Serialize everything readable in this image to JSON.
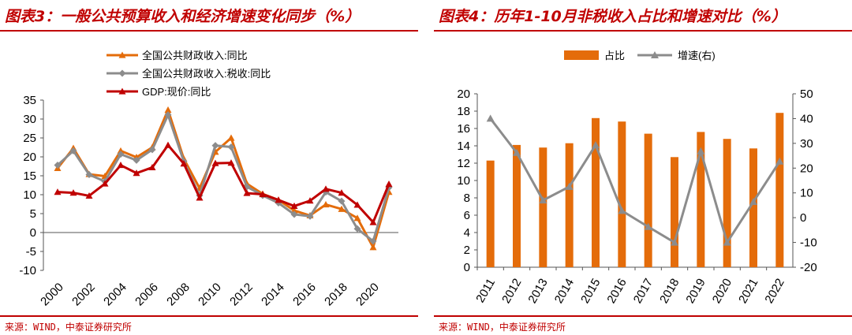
{
  "left": {
    "title": "图表3：一般公共预算收入和经济增速变化同步（%）",
    "source": "来源：WIND，中泰证券研究所",
    "chart_data": {
      "type": "line",
      "x": [
        2000,
        2001,
        2002,
        2003,
        2004,
        2005,
        2006,
        2007,
        2008,
        2009,
        2010,
        2011,
        2012,
        2013,
        2014,
        2015,
        2016,
        2017,
        2018,
        2019,
        2020,
        2021
      ],
      "x_tick_labels": [
        "2000",
        "2002",
        "2004",
        "2006",
        "2008",
        "2010",
        "2012",
        "2014",
        "2016",
        "2018",
        "2020"
      ],
      "ylim": [
        -10,
        35
      ],
      "y_ticks": [
        -10,
        -5,
        0,
        5,
        10,
        15,
        20,
        25,
        30,
        35
      ],
      "legend_position": "top-left",
      "series": [
        {
          "name": "全国公共财政收入:同比",
          "color": "#e46c0a",
          "marker": "triangle",
          "values": [
            17.0,
            22.3,
            15.4,
            14.9,
            21.6,
            19.9,
            22.5,
            32.4,
            19.5,
            11.7,
            21.3,
            25.0,
            12.9,
            10.2,
            8.6,
            5.8,
            4.5,
            7.4,
            6.2,
            3.8,
            -3.9,
            10.7
          ]
        },
        {
          "name": "全国公共财政收入:税收:同比",
          "color": "#8c8c8c",
          "marker": "diamond",
          "values": [
            17.8,
            21.6,
            15.3,
            13.5,
            20.7,
            19.1,
            21.9,
            31.1,
            18.8,
            9.8,
            23.0,
            22.6,
            12.1,
            9.8,
            7.8,
            4.8,
            4.3,
            10.7,
            8.3,
            1.0,
            -2.3,
            11.9
          ]
        },
        {
          "name": "GDP:现价:同比",
          "color": "#c00000",
          "marker": "triangle",
          "values": [
            10.7,
            10.5,
            9.7,
            12.9,
            17.8,
            15.7,
            17.2,
            23.1,
            18.2,
            9.2,
            18.3,
            18.4,
            10.4,
            10.1,
            8.6,
            7.0,
            8.4,
            11.5,
            10.5,
            7.3,
            2.7,
            12.8
          ]
        }
      ]
    }
  },
  "right": {
    "title": "图表4：历年1-10月非税收入占比和增速对比（%）",
    "source": "来源：WIND，中泰证券研究所",
    "chart_data": {
      "type": "bar",
      "categories": [
        "2011",
        "2012",
        "2013",
        "2014",
        "2015",
        "2016",
        "2017",
        "2018",
        "2019",
        "2020",
        "2021",
        "2022"
      ],
      "legend_position": "top",
      "ylim_left": [
        0,
        20
      ],
      "y_ticks_left": [
        0,
        2,
        4,
        6,
        8,
        10,
        12,
        14,
        16,
        18,
        20
      ],
      "ylim_right": [
        -20,
        50
      ],
      "y_ticks_right": [
        -20,
        -10,
        0,
        10,
        20,
        30,
        40,
        50
      ],
      "series": [
        {
          "name": "占比",
          "type": "bar",
          "axis": "left",
          "color": "#e46c0a",
          "values": [
            12.3,
            14.1,
            13.8,
            14.3,
            17.2,
            16.8,
            15.4,
            12.7,
            15.6,
            14.8,
            13.7,
            17.8
          ]
        },
        {
          "name": "增速(右)",
          "type": "line",
          "axis": "right",
          "color": "#8c8c8c",
          "marker": "triangle",
          "values": [
            40.0,
            26.2,
            7.0,
            12.5,
            29.3,
            2.8,
            -3.7,
            -10.0,
            26.8,
            -10.0,
            6.4,
            22.7
          ]
        }
      ]
    }
  }
}
